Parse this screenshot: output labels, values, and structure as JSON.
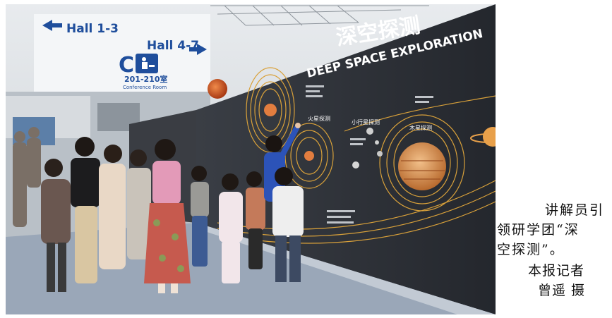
{
  "photo": {
    "signs": {
      "hall_left": "Hall 1-3",
      "hall_right": "Hall 4-7",
      "room_letter": "C",
      "room_range": "201-210室",
      "room_label": "Conference Room"
    },
    "exhibit": {
      "title_cn": "深空探测",
      "title_en": "DEEP SPACE EXPLORATION",
      "label_jupiter": "木星探测",
      "label_asteroid": "小行星探测",
      "label_mars": "火星探测"
    }
  },
  "caption": {
    "line1": "讲解员引",
    "line2": "领研学团“深",
    "line3": "空探测”。",
    "credit_line1": "本报记者",
    "credit_line2": "曾遥 摄"
  },
  "colors": {
    "wall": "#2b2f36",
    "orbit": "#d9a13a",
    "floor": "#9aa7b8",
    "guide_jacket": "#2c53b8"
  }
}
